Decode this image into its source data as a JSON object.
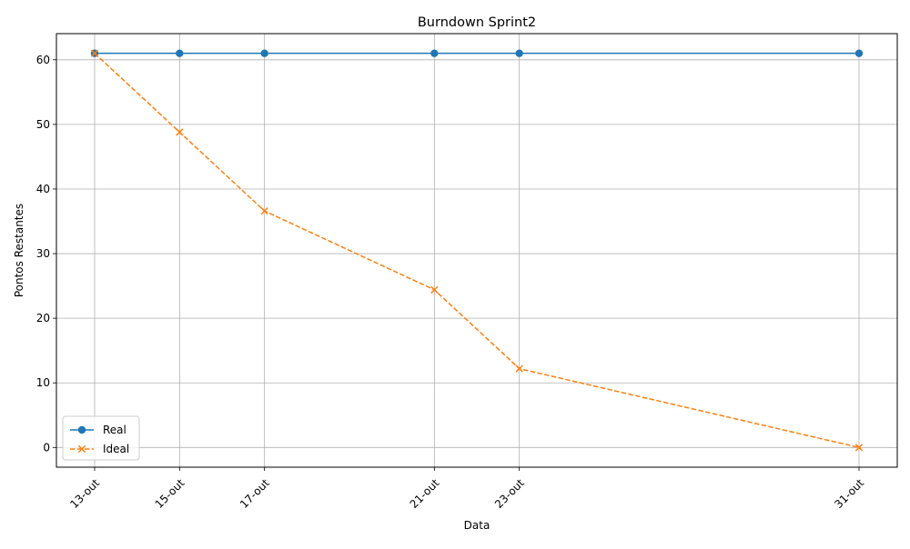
{
  "chart_data": {
    "type": "line",
    "title": "Burndown Sprint2",
    "xlabel": "Data",
    "ylabel": "Pontos Restantes",
    "categories": [
      "13-out",
      "15-out",
      "17-out",
      "21-out",
      "23-out",
      "31-out"
    ],
    "x_day_of_month": [
      13,
      15,
      17,
      21,
      23,
      31
    ],
    "x_range_day": [
      12.1,
      31.9
    ],
    "ylim": [
      -3.05,
      64.05
    ],
    "yticks": [
      0,
      10,
      20,
      30,
      40,
      50,
      60
    ],
    "grid": true,
    "legend_position": "lower-left",
    "series": [
      {
        "name": "Real",
        "values": [
          61,
          61,
          61,
          61,
          61,
          61
        ],
        "color": "#1f77b4",
        "line_style": "solid",
        "marker": "circle"
      },
      {
        "name": "Ideal",
        "values": [
          61,
          48.8,
          36.6,
          24.4,
          12.2,
          0
        ],
        "color": "#ff7f0e",
        "line_style": "dashed",
        "marker": "x"
      }
    ]
  }
}
